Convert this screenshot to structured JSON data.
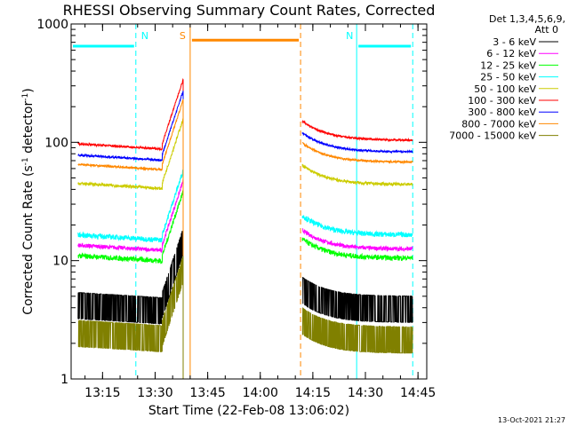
{
  "chart_data": {
    "type": "line",
    "title": "RHESSI Observing Summary Count Rates, Corrected",
    "xlabel": "Start Time (22-Feb-08 13:06:02)",
    "ylabel_main": "Corrected Count Rate (s",
    "ylabel_sup1": "-1",
    "ylabel_mid": " detector",
    "ylabel_sup2": "-1",
    "ylabel_end": ")",
    "yscale": "log",
    "ylim": [
      1,
      1000
    ],
    "xlim": [
      "13:06:02",
      "14:47:30"
    ],
    "x_ticks": [
      "13:15",
      "13:30",
      "13:45",
      "14:00",
      "14:15",
      "14:30",
      "14:45"
    ],
    "y_ticks": [
      "1",
      "10",
      "100",
      "1000"
    ],
    "legend_position": "right",
    "legend_header": [
      "Det 1,3,4,5,6,9,",
      "Att 0"
    ],
    "timestamp": "13-Oct-2021 21:27",
    "segments": [
      {
        "start": "13:08:00",
        "end": "13:38:00"
      },
      {
        "start": "14:12:00",
        "end": "14:43:30"
      }
    ],
    "series": [
      {
        "name": "3 - 6 keV",
        "color": "#000000",
        "before": 4.3,
        "after": 4.0,
        "noise": "step"
      },
      {
        "name": "6 - 12 keV",
        "color": "#ff00ff",
        "before": 13.5,
        "after": 12.5,
        "noise": 0.04
      },
      {
        "name": "12 - 25 keV",
        "color": "#00ff00",
        "before": 11.0,
        "after": 10.5,
        "noise": 0.05
      },
      {
        "name": "25 - 50 keV",
        "color": "#00ffff",
        "before": 16.5,
        "after": 16.5,
        "noise": 0.05
      },
      {
        "name": "50 - 100 keV",
        "color": "#cccc00",
        "before": 45,
        "after": 44,
        "noise": 0.03
      },
      {
        "name": "100 - 300 keV",
        "color": "#ff0000",
        "before": 97,
        "after": 104,
        "noise": 0.02
      },
      {
        "name": "300 - 800 keV",
        "color": "#0000ff",
        "before": 78,
        "after": 83,
        "noise": 0.02
      },
      {
        "name": "800 - 7000 keV",
        "color": "#ff8800",
        "before": 65,
        "after": 68,
        "noise": 0.02
      },
      {
        "name": "7000 - 15000 keV",
        "color": "#808000",
        "before": 2.5,
        "after": 2.2,
        "noise": "step"
      }
    ],
    "markers": [
      {
        "label": "N",
        "color": "#00ffff",
        "style": "dashed",
        "time": "13:24:30",
        "bar": [
          "13:06:02",
          "13:24:30"
        ],
        "bar_y": 650
      },
      {
        "label": "N",
        "color": "#00ffff",
        "style": "solid",
        "time": "14:27:30",
        "bar": [
          "14:27:30",
          "14:43:30"
        ],
        "bar_y": 650
      },
      {
        "label": "",
        "color": "#00ffff",
        "style": "dashed",
        "time": "14:43:30"
      },
      {
        "label": "",
        "color": "#00ffff",
        "style": "solid",
        "time": "13:06:02"
      },
      {
        "label": "S",
        "color": "#ff8800",
        "style": "solid",
        "time": "13:40:00",
        "bar": [
          "13:40:00",
          "14:11:30"
        ],
        "bar_y": 730
      },
      {
        "label": "",
        "color": "#ff8800",
        "style": "dashed",
        "time": "14:11:30"
      }
    ]
  }
}
